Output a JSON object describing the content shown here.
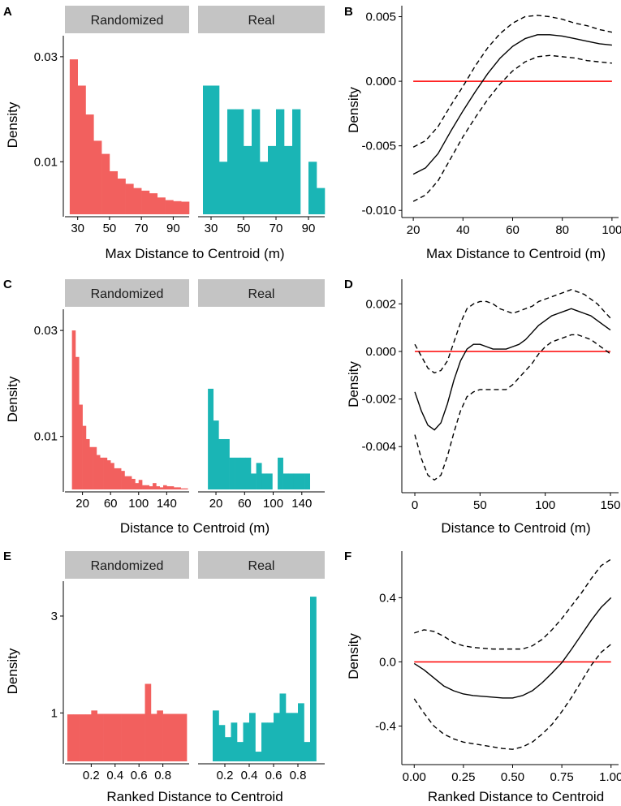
{
  "colors": {
    "randomized": "#f2605e",
    "real": "#1ab5b5",
    "ref_line": "#ff0000",
    "strip_bg": "#c4c4c4"
  },
  "chart_data": [
    {
      "panel": "A",
      "type": "bar",
      "facets": [
        {
          "label": "Randomized",
          "bins_x": [
            27.5,
            32.5,
            37.5,
            42.5,
            47.5,
            52.5,
            57.5,
            62.5,
            67.5,
            72.5,
            77.5,
            82.5,
            87.5,
            92.5,
            97.5
          ],
          "values": [
            0.0295,
            0.0245,
            0.019,
            0.014,
            0.0115,
            0.0082,
            0.0068,
            0.0058,
            0.005,
            0.0045,
            0.004,
            0.0032,
            0.0027,
            0.0025,
            0.0024
          ]
        },
        {
          "label": "Real",
          "bins_x": [
            27.5,
            32.5,
            37.5,
            42.5,
            47.5,
            52.5,
            57.5,
            62.5,
            67.5,
            72.5,
            77.5,
            82.5,
            87.5,
            92.5,
            97.5
          ],
          "values": [
            0.0245,
            0.0245,
            0.01,
            0.02,
            0.02,
            0.013,
            0.02,
            0.01,
            0.013,
            0.02,
            0.013,
            0.02,
            0,
            0.01,
            0.005
          ]
        }
      ],
      "bin_width": 5,
      "xlim": [
        22,
        100
      ],
      "xticks": [
        30,
        50,
        70,
        90
      ],
      "xticks_label": [
        "30",
        "50",
        "70",
        "90"
      ],
      "ylim": [
        0,
        0.034
      ],
      "yticks": [
        0.01,
        0.03
      ],
      "yticks_label": [
        "0.01",
        "0.03"
      ],
      "xlabel": "Max Distance to Centroid (m)",
      "ylabel": "Density"
    },
    {
      "panel": "B",
      "type": "line",
      "x": [
        20,
        25,
        30,
        35,
        40,
        45,
        50,
        55,
        60,
        65,
        70,
        75,
        80,
        85,
        90,
        95,
        100
      ],
      "series": [
        {
          "name": "fit",
          "style": "solid",
          "values": [
            -0.0072,
            -0.0067,
            -0.0056,
            -0.0039,
            -0.0023,
            -0.0008,
            0.0006,
            0.0018,
            0.0027,
            0.0033,
            0.0036,
            0.0036,
            0.0035,
            0.0033,
            0.0031,
            0.0029,
            0.0028
          ]
        },
        {
          "name": "upper",
          "style": "dashed",
          "values": [
            -0.0051,
            -0.0046,
            -0.0035,
            -0.0019,
            -0.0004,
            0.0012,
            0.0026,
            0.0037,
            0.0045,
            0.005,
            0.0051,
            0.005,
            0.0048,
            0.0045,
            0.0043,
            0.004,
            0.0038
          ]
        },
        {
          "name": "lower",
          "style": "dashed",
          "values": [
            -0.0093,
            -0.0088,
            -0.0077,
            -0.006,
            -0.0043,
            -0.0028,
            -0.0014,
            -0.0002,
            0.0008,
            0.0015,
            0.0019,
            0.002,
            0.0019,
            0.0018,
            0.0016,
            0.0015,
            0.0014
          ]
        }
      ],
      "hline": 0,
      "xlim": [
        18,
        102
      ],
      "xticks": [
        20,
        40,
        60,
        80,
        100
      ],
      "xticks_label": [
        "20",
        "40",
        "60",
        "80",
        "100"
      ],
      "ylim": [
        -0.0103,
        0.0056
      ],
      "yticks": [
        -0.01,
        -0.005,
        0.0,
        0.005
      ],
      "yticks_label": [
        "-0.010",
        "-0.005",
        "0.000",
        "0.005"
      ],
      "xlabel": "Max Distance to Centroid (m)",
      "ylabel": "Density"
    },
    {
      "panel": "C",
      "type": "bar",
      "facets": [
        {
          "label": "Randomized",
          "bins_x": [
            7.5,
            12.5,
            17.5,
            22.5,
            27.5,
            32.5,
            37.5,
            42.5,
            47.5,
            52.5,
            57.5,
            62.5,
            67.5,
            72.5,
            77.5,
            82.5,
            87.5,
            92.5,
            97.5,
            102.5,
            107.5,
            112.5,
            117.5,
            122.5,
            127.5,
            132.5,
            137.5,
            142.5,
            147.5,
            152.5,
            157.5,
            162.5,
            167.5
          ],
          "values": [
            0.03,
            0.025,
            0.016,
            0.012,
            0.0095,
            0.008,
            0.008,
            0.0065,
            0.006,
            0.006,
            0.0055,
            0.005,
            0.004,
            0.004,
            0.0035,
            0.0025,
            0.0025,
            0.002,
            0.0012,
            0.0018,
            0.0008,
            0.0008,
            0.0006,
            0.0012,
            0.0006,
            0.0004,
            0.0008,
            0.0006,
            0.0006,
            0.0004,
            0.0004,
            0.0002,
            0.0002
          ]
        },
        {
          "label": "Real",
          "bins_x": [
            12.5,
            20,
            27.5,
            35,
            42.5,
            50,
            57.5,
            65,
            72.5,
            80,
            87.5,
            95,
            102.5,
            110,
            117.5,
            125,
            132.5,
            140,
            147.5
          ],
          "values": [
            0.019,
            0.013,
            0.0095,
            0.0095,
            0.006,
            0.006,
            0.006,
            0.006,
            0.003,
            0.005,
            0.003,
            0.003,
            0,
            0.006,
            0.003,
            0.003,
            0.003,
            0.003,
            0.003
          ]
        }
      ],
      "bin_width_randomized": 5,
      "bin_width_real": 7.5,
      "xlim": [
        -5,
        172
      ],
      "xticks": [
        20,
        60,
        100,
        140
      ],
      "xticks_label": [
        "20",
        "60",
        "100",
        "140"
      ],
      "ylim": [
        0,
        0.034
      ],
      "yticks": [
        0.01,
        0.03
      ],
      "yticks_label": [
        "0.01",
        "0.03"
      ],
      "xlabel": "Distance to Centroid (m)",
      "ylabel": "Density"
    },
    {
      "panel": "D",
      "type": "line",
      "x": [
        0,
        5,
        10,
        15,
        20,
        25,
        30,
        35,
        40,
        45,
        50,
        55,
        60,
        65,
        70,
        75,
        80,
        85,
        90,
        95,
        100,
        105,
        110,
        115,
        120,
        125,
        130,
        135,
        140,
        145,
        150
      ],
      "series": [
        {
          "name": "fit",
          "style": "solid",
          "values": [
            -0.0017,
            -0.0025,
            -0.0031,
            -0.0033,
            -0.003,
            -0.0022,
            -0.0012,
            -0.0004,
            0.0001,
            0.0003,
            0.0003,
            0.0002,
            0.0001,
            0.0001,
            0.0001,
            0.0002,
            0.0003,
            0.0005,
            0.0008,
            0.0011,
            0.0013,
            0.0015,
            0.0016,
            0.0017,
            0.0018,
            0.0017,
            0.0016,
            0.0015,
            0.0013,
            0.0011,
            0.0009
          ]
        },
        {
          "name": "upper",
          "style": "dashed",
          "values": [
            0.0003,
            -0.0002,
            -0.0007,
            -0.0009,
            -0.0008,
            -0.0004,
            0.0004,
            0.0012,
            0.0018,
            0.002,
            0.0021,
            0.0021,
            0.002,
            0.0018,
            0.0017,
            0.0016,
            0.0017,
            0.0018,
            0.0019,
            0.0021,
            0.0022,
            0.0023,
            0.0024,
            0.0025,
            0.0026,
            0.0025,
            0.0024,
            0.0022,
            0.002,
            0.0017,
            0.0014
          ]
        },
        {
          "name": "lower",
          "style": "dashed",
          "values": [
            -0.0035,
            -0.0045,
            -0.0052,
            -0.0054,
            -0.0052,
            -0.0044,
            -0.0034,
            -0.0025,
            -0.0019,
            -0.0017,
            -0.0016,
            -0.0016,
            -0.0016,
            -0.0016,
            -0.0016,
            -0.0014,
            -0.0011,
            -0.0008,
            -0.0005,
            -0.0001,
            0.0002,
            0.0004,
            0.0005,
            0.0006,
            0.0007,
            0.0007,
            0.0006,
            0.0005,
            0.0003,
            0.0001,
            -0.0001
          ]
        }
      ],
      "hline": 0,
      "xlim": [
        -5,
        155
      ],
      "xticks": [
        0,
        50,
        100,
        150
      ],
      "xticks_label": [
        "0",
        "50",
        "100",
        "150"
      ],
      "ylim": [
        -0.0058,
        0.0029
      ],
      "yticks": [
        -0.004,
        -0.002,
        0.0,
        0.002
      ],
      "yticks_label": [
        "-0.004",
        "-0.002",
        "0.000",
        "0.002"
      ],
      "xlabel": "Distance to Centroid (m)",
      "ylabel": "Density"
    },
    {
      "panel": "E",
      "type": "bar",
      "facets": [
        {
          "label": "Randomized",
          "bins_x": [
            0.025,
            0.075,
            0.125,
            0.175,
            0.225,
            0.275,
            0.325,
            0.375,
            0.425,
            0.475,
            0.525,
            0.575,
            0.625,
            0.675,
            0.725,
            0.775,
            0.825,
            0.875,
            0.925,
            0.975
          ],
          "values": [
            0.97,
            0.97,
            0.97,
            0.97,
            1.05,
            0.98,
            0.98,
            0.98,
            0.98,
            0.98,
            0.98,
            0.98,
            0.98,
            1.6,
            0.98,
            1.05,
            0.98,
            0.98,
            0.98,
            0.98
          ]
        },
        {
          "label": "Real",
          "bins_x": [
            0.125,
            0.175,
            0.225,
            0.275,
            0.325,
            0.375,
            0.425,
            0.475,
            0.525,
            0.575,
            0.625,
            0.675,
            0.725,
            0.775,
            0.825,
            0.875,
            0.925,
            0.975
          ],
          "values": [
            1.05,
            0.75,
            0.5,
            0.8,
            0.4,
            0.8,
            1.0,
            0.2,
            0.8,
            0.8,
            1.0,
            1.4,
            1.0,
            1.0,
            1.2,
            0.4,
            3.4,
            0
          ]
        }
      ],
      "bin_width": 0.05,
      "xlim": [
        -0.02,
        1.02
      ],
      "xticks": [
        0.2,
        0.4,
        0.6,
        0.8
      ],
      "xticks_label": [
        "0.2",
        "0.4",
        "0.6",
        "0.8"
      ],
      "ylim": [
        0,
        3.72
      ],
      "yticks": [
        1,
        3
      ],
      "yticks_label": [
        "1",
        "3"
      ],
      "xlabel": "Ranked Distance to Centroid",
      "ylabel": "Density"
    },
    {
      "panel": "F",
      "type": "line",
      "x": [
        0,
        0.05,
        0.1,
        0.15,
        0.2,
        0.25,
        0.3,
        0.35,
        0.4,
        0.45,
        0.5,
        0.55,
        0.6,
        0.65,
        0.7,
        0.75,
        0.8,
        0.85,
        0.9,
        0.95,
        1.0
      ],
      "series": [
        {
          "name": "fit",
          "style": "solid",
          "values": [
            -0.01,
            -0.05,
            -0.1,
            -0.15,
            -0.18,
            -0.2,
            -0.21,
            -0.215,
            -0.22,
            -0.225,
            -0.225,
            -0.21,
            -0.18,
            -0.13,
            -0.07,
            -0.005,
            0.08,
            0.17,
            0.26,
            0.34,
            0.4
          ]
        },
        {
          "name": "upper",
          "style": "dashed",
          "values": [
            0.18,
            0.2,
            0.19,
            0.16,
            0.12,
            0.1,
            0.09,
            0.085,
            0.08,
            0.08,
            0.08,
            0.08,
            0.1,
            0.14,
            0.2,
            0.27,
            0.35,
            0.43,
            0.52,
            0.6,
            0.64
          ]
        },
        {
          "name": "lower",
          "style": "dashed",
          "values": [
            -0.23,
            -0.32,
            -0.4,
            -0.45,
            -0.48,
            -0.5,
            -0.51,
            -0.52,
            -0.53,
            -0.54,
            -0.545,
            -0.53,
            -0.5,
            -0.45,
            -0.39,
            -0.31,
            -0.22,
            -0.12,
            -0.02,
            0.06,
            0.11
          ]
        }
      ],
      "hline": 0,
      "xlim": [
        -0.03,
        1.03
      ],
      "xticks": [
        0,
        0.25,
        0.5,
        0.75,
        1.0
      ],
      "xticks_label": [
        "0.00",
        "0.25",
        "0.50",
        "0.75",
        "1.00"
      ],
      "ylim": [
        -0.62,
        0.67
      ],
      "yticks": [
        -0.4,
        0,
        0.4
      ],
      "yticks_label": [
        "-0.4",
        "0.0",
        "0.4"
      ],
      "xlabel": "Ranked Distance to Centroid",
      "ylabel": "Density"
    }
  ]
}
